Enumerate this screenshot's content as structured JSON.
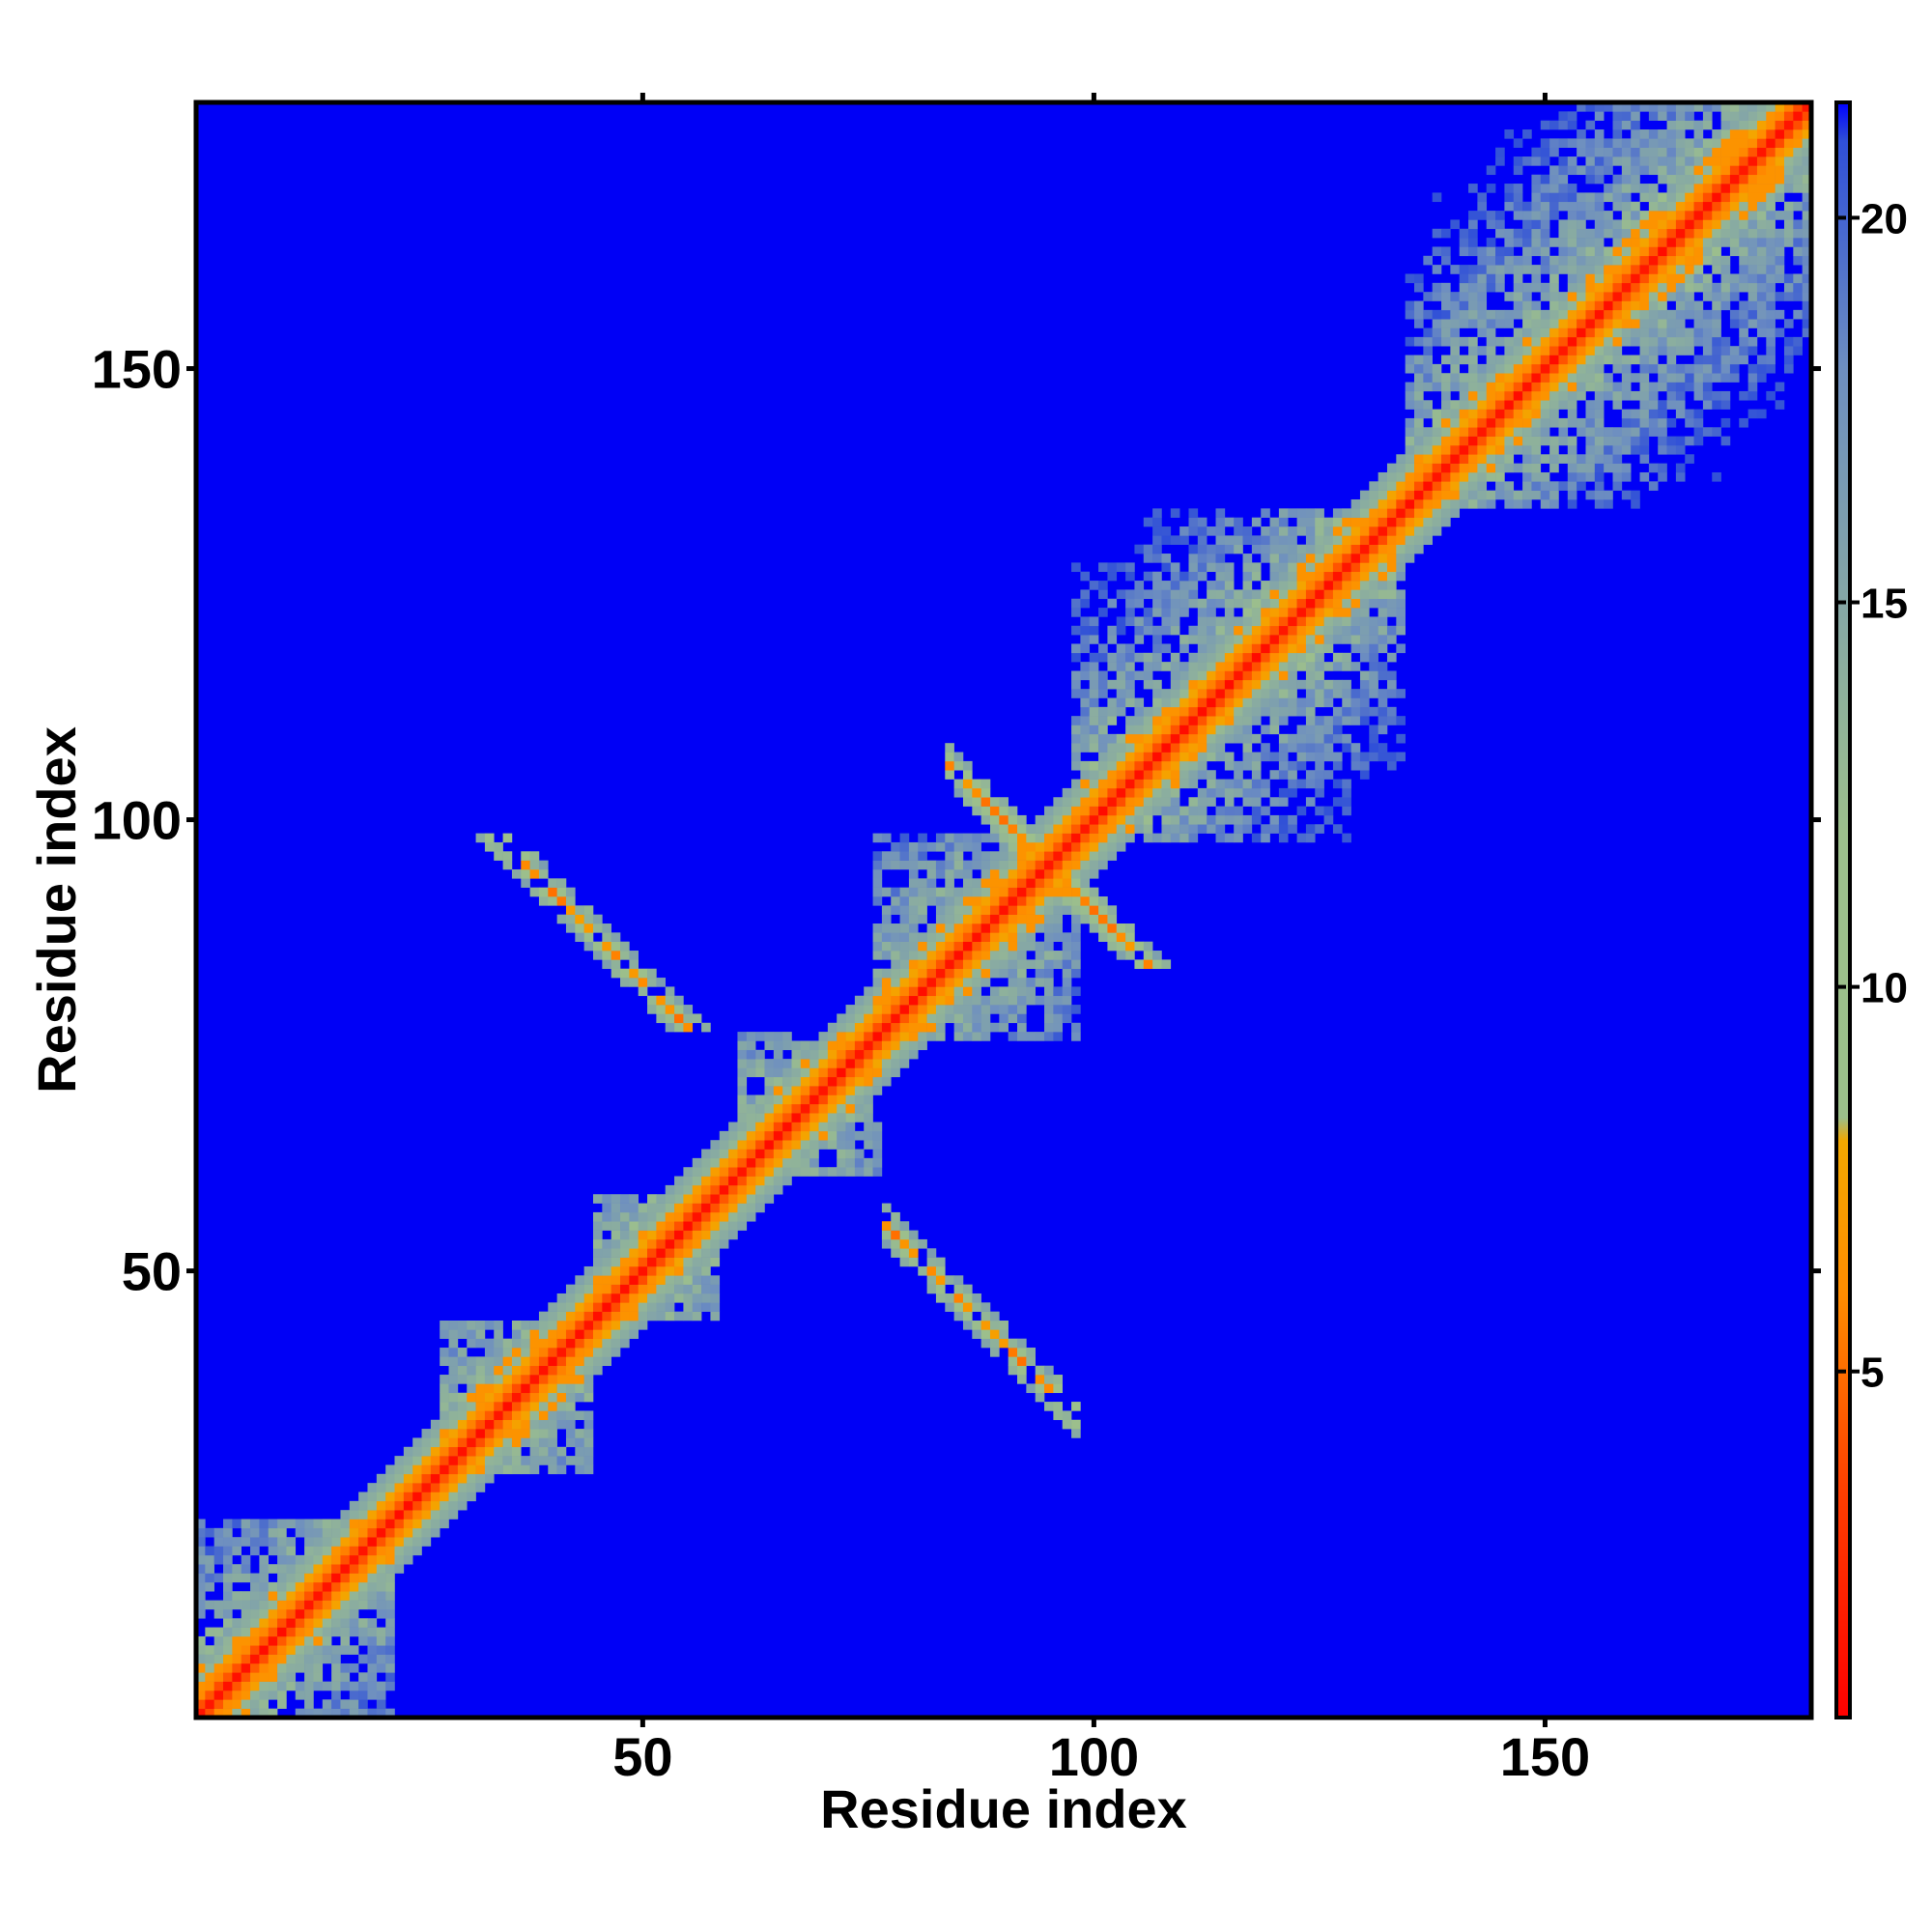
{
  "chart_data": {
    "type": "heatmap",
    "title": "",
    "xlabel": "Residue index",
    "ylabel": "Residue index",
    "xlim": [
      1,
      179
    ],
    "ylim": [
      1,
      179
    ],
    "x_ticks": [
      50,
      100,
      150
    ],
    "y_ticks": [
      50,
      100,
      150
    ],
    "x_tick_labels": [
      "50",
      "100",
      "150"
    ],
    "y_tick_labels": [
      "50",
      "100",
      "150"
    ],
    "colorbar": {
      "range": [
        0.5,
        21.5
      ],
      "ticks": [
        5,
        10,
        15,
        20
      ],
      "tick_labels": [
        "5",
        "10",
        "15",
        "20"
      ],
      "stops": [
        {
          "value": 0.5,
          "color": "#ff0000"
        },
        {
          "value": 3.5,
          "color": "#ff4000"
        },
        {
          "value": 6,
          "color": "#ff8c00"
        },
        {
          "value": 8,
          "color": "#f2a800"
        },
        {
          "value": 8.3,
          "color": "#9bbf8a"
        },
        {
          "value": 12,
          "color": "#9cbf8c"
        },
        {
          "value": 18,
          "color": "#6e8fc0"
        },
        {
          "value": 21,
          "color": "#2f4fd8"
        },
        {
          "value": 21.5,
          "color": "#0000ff"
        }
      ]
    },
    "background_value": 21,
    "background_color": "#0000f6",
    "features": [
      {
        "kind": "diagonal",
        "from": 1,
        "to": 179
      },
      {
        "kind": "block",
        "range": [
          1,
          22
        ]
      },
      {
        "kind": "block",
        "range": [
          28,
          44
        ]
      },
      {
        "kind": "block",
        "range": [
          45,
          58
        ]
      },
      {
        "kind": "block",
        "range": [
          61,
          76
        ]
      },
      {
        "kind": "block",
        "range": [
          76,
          98
        ]
      },
      {
        "kind": "block",
        "range": [
          98,
          134
        ]
      },
      {
        "kind": "block",
        "range": [
          135,
          179
        ]
      },
      {
        "kind": "antiparallel_sheet",
        "i_range": [
          34,
          55
        ],
        "j_range": [
          76,
          98
        ]
      },
      {
        "kind": "antiparallel_sheet",
        "i_range": [
          89,
          121
        ],
        "j_range": [
          84,
          101
        ]
      }
    ]
  }
}
